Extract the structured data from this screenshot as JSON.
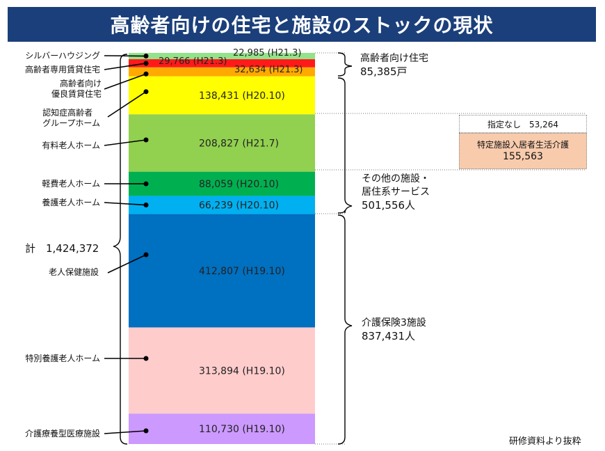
{
  "title": "高齢者向けの住宅と施設のストックの現状",
  "total_label": "計　1,424,372",
  "source_note": "研修資料より抜粋",
  "groups": {
    "housing": {
      "line1": "高齢者向け住宅",
      "line2": "85,385戸"
    },
    "other": {
      "line1": "その他の施設・",
      "line2": "居住系サービス",
      "line3": "501,556人"
    },
    "care": {
      "line1": "介護保険3施設",
      "line2": "837,431人"
    }
  },
  "side_breakdown": {
    "row1": "指定なし　53,264",
    "row2_line1": "特定施設入居者生活介護",
    "row2_line2": "155,563",
    "row2_color": "#f8cbad"
  },
  "category_labels": {
    "silver": "シルバーハウジング",
    "senmon": "高齢者専用賃貸住宅",
    "yuryo_1": "高齢者向け",
    "yuryo_2": "優良賃貸住宅",
    "gh_1": "認知症高齢者",
    "gh_2": "グループホーム",
    "yuryo_home": "有料老人ホーム",
    "keihi": "軽費老人ホーム",
    "yogo": "養護老人ホーム",
    "hoken": "老人保健施設",
    "tokuyo": "特別養護老人ホーム",
    "ryoyo": "介護療養型医療施設"
  },
  "chart_data": {
    "type": "bar",
    "stacked": true,
    "orientation": "vertical",
    "segments": [
      {
        "category": "シルバーハウジング",
        "value": 22985,
        "value_label": "22,985",
        "date": "(H21.3)",
        "color": "#92e389"
      },
      {
        "category": "高齢者専用賃貸住宅",
        "value": 29766,
        "value_label": "29,766",
        "date": "(H21.3)",
        "color": "#ff1a1a"
      },
      {
        "category": "高齢者向け優良賃貸住宅",
        "value": 32634,
        "value_label": "32,634",
        "date": "(H21.3)",
        "color": "#ffaa00"
      },
      {
        "category": "認知症高齢者グループホーム",
        "value": 138431,
        "value_label": "138,431",
        "date": "(H20.10)",
        "color": "#ffff00"
      },
      {
        "category": "有料老人ホーム",
        "value": 208827,
        "value_label": "208,827",
        "date": "(H21.7)",
        "color": "#92d050"
      },
      {
        "category": "軽費老人ホーム",
        "value": 88059,
        "value_label": "88,059",
        "date": "(H20.10)",
        "color": "#00b050"
      },
      {
        "category": "養護老人ホーム",
        "value": 66239,
        "value_label": "66,239",
        "date": "(H20.10)",
        "color": "#00b0f0"
      },
      {
        "category": "老人保健施設",
        "value": 412807,
        "value_label": "412,807",
        "date": "(H19.10)",
        "color": "#0070c0"
      },
      {
        "category": "特別養護老人ホーム",
        "value": 313894,
        "value_label": "313,894",
        "date": "(H19.10)",
        "color": "#ffcccc"
      },
      {
        "category": "介護療養型医療施設",
        "value": 110730,
        "value_label": "110,730",
        "date": "(H19.10)",
        "color": "#cc99ff"
      }
    ],
    "total": 1424372
  }
}
